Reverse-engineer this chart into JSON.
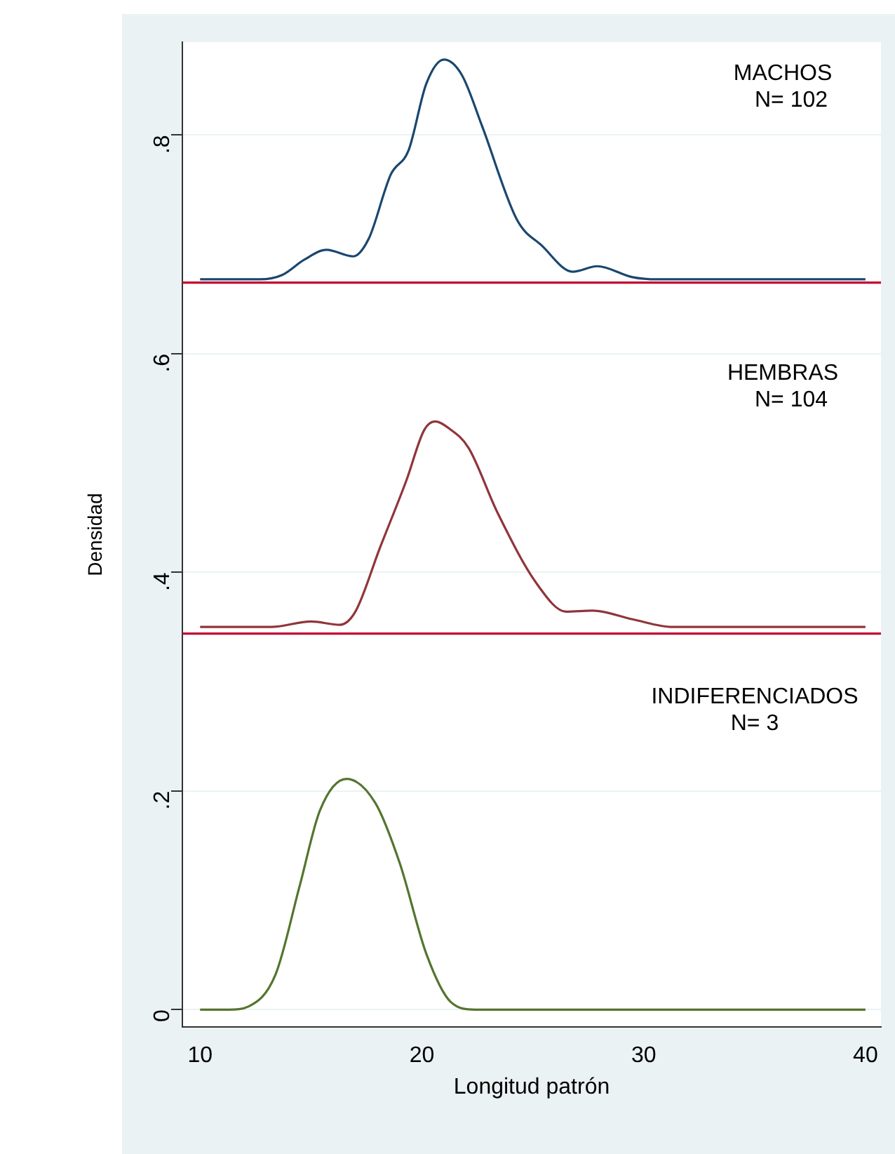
{
  "chart_data": {
    "type": "line",
    "xlabel": "Longitud patrón",
    "ylabel": "Densidad",
    "xlim": [
      9.2,
      40.7
    ],
    "ylim": [
      -0.016,
      0.885
    ],
    "xticks": [
      10,
      20,
      30,
      40
    ],
    "yticks": [
      0,
      {
        "value": 0.2,
        "label": ".2"
      },
      {
        "value": 0.4,
        "label": ".4"
      },
      {
        "value": 0.6,
        "label": ".6"
      },
      {
        "value": 0.8,
        "label": ".8"
      }
    ],
    "grid": "y",
    "legend": false,
    "marker": "none",
    "line_style": "solid",
    "series": [
      {
        "color": "#1a476f",
        "x": [
          10,
          12.7,
          13.7,
          14.7,
          15.7,
          16.9,
          17.6,
          18.6,
          19.4,
          20.2,
          21.0,
          21.8,
          22.7,
          24.3,
          25.4,
          26.8,
          27.9,
          29.5,
          30.6,
          40
        ],
        "values": [
          0.668,
          0.668,
          0.672,
          0.686,
          0.695,
          0.689,
          0.705,
          0.764,
          0.786,
          0.847,
          0.869,
          0.855,
          0.809,
          0.722,
          0.699,
          0.675,
          0.68,
          0.67,
          0.668,
          0.668
        ]
      },
      {
        "color": "#90353b",
        "x": [
          10,
          13.2,
          15.0,
          16.3,
          17.0,
          18.1,
          19.3,
          20.1,
          20.6,
          21.2,
          22.1,
          23.4,
          25.2,
          26.5,
          27.7,
          29.5,
          31.3,
          40
        ],
        "values": [
          0.35,
          0.35,
          0.355,
          0.352,
          0.364,
          0.422,
          0.484,
          0.53,
          0.538,
          0.532,
          0.514,
          0.455,
          0.389,
          0.364,
          0.365,
          0.357,
          0.35,
          0.35
        ]
      },
      {
        "color": "#55752f",
        "x": [
          10,
          11.3,
          12.2,
          13.4,
          14.5,
          15.4,
          16.6,
          17.9,
          19.0,
          20.2,
          21.3,
          22.4,
          40
        ],
        "values": [
          0,
          0,
          0.003,
          0.032,
          0.114,
          0.182,
          0.211,
          0.189,
          0.134,
          0.051,
          0.007,
          0,
          0
        ]
      }
    ],
    "ref_lines": [
      {
        "axis": "y",
        "value": 0.665,
        "color": "#c10534"
      },
      {
        "axis": "y",
        "value": 0.344,
        "color": "#c10534"
      }
    ],
    "annotations": [
      "MACHOS",
      "N= 102",
      "HEMBRAS",
      "N= 104",
      "INDIFERENCIADOS",
      "N= 3"
    ]
  }
}
